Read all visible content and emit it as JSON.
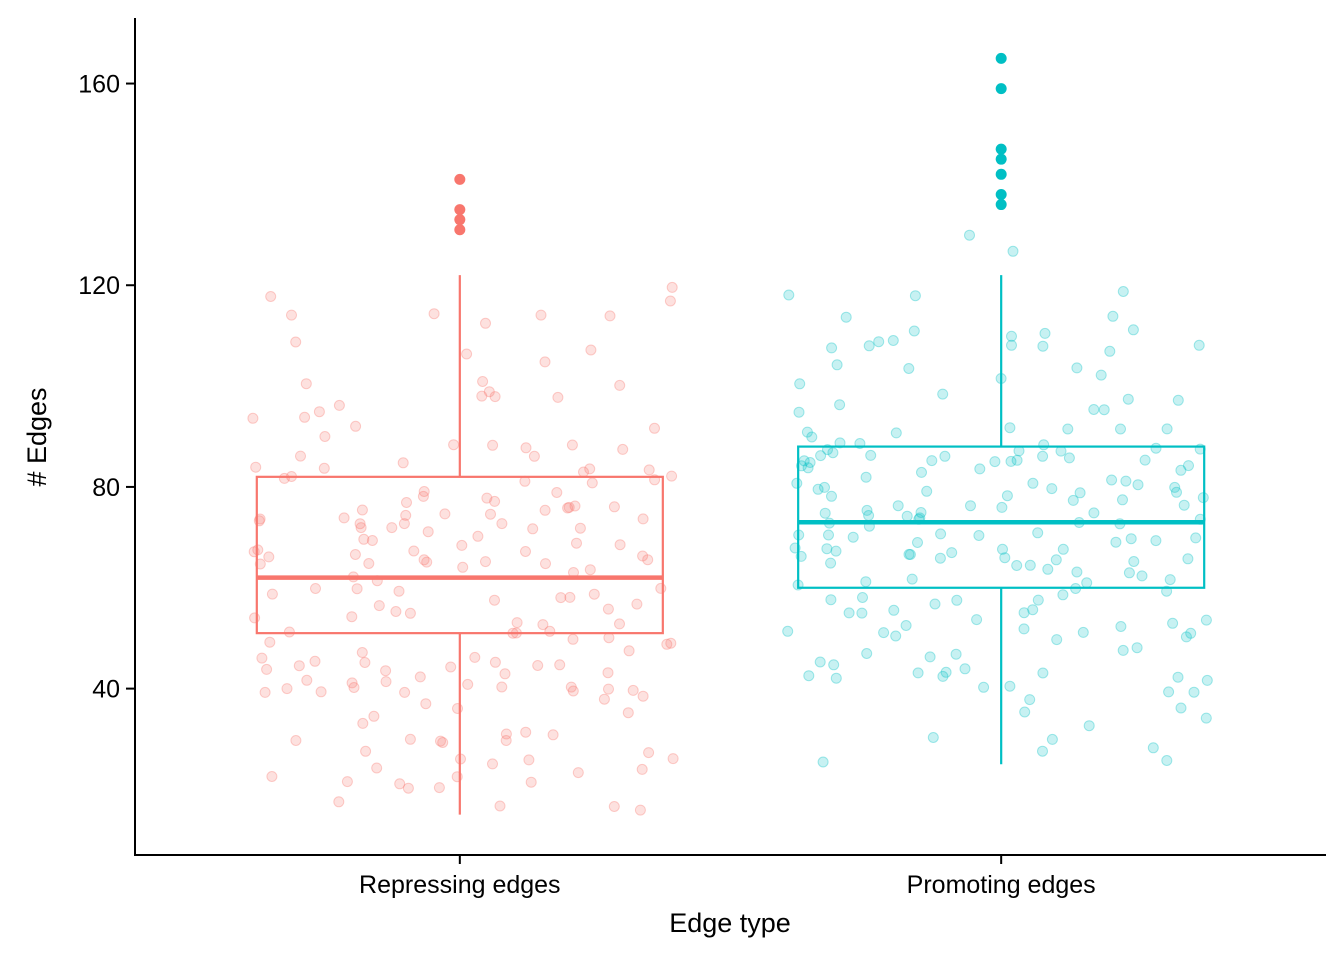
{
  "chart_data": {
    "type": "boxplot",
    "xlabel": "Edge type",
    "ylabel": "# Edges",
    "ylim": [
      7,
      173
    ],
    "yticks": [
      40,
      80,
      120,
      160
    ],
    "categories": [
      "Repressing edges",
      "Promoting edges"
    ],
    "grid": false,
    "legend": "none",
    "series": [
      {
        "name": "Repressing edges",
        "color": "#F8766D",
        "box": {
          "whisker_low": 15,
          "q1": 51,
          "median": 62,
          "q3": 82,
          "whisker_high": 122
        },
        "outliers": [
          131,
          133,
          135,
          141
        ],
        "jitter_count": 190,
        "jitter_seed": 11
      },
      {
        "name": "Promoting edges",
        "color": "#00BFC4",
        "box": {
          "whisker_low": 25,
          "q1": 60,
          "median": 73,
          "q3": 88,
          "whisker_high": 122
        },
        "outliers": [
          136,
          138,
          142,
          145,
          147,
          159,
          165
        ],
        "jitter_count": 195,
        "jitter_seed": 29
      }
    ]
  }
}
